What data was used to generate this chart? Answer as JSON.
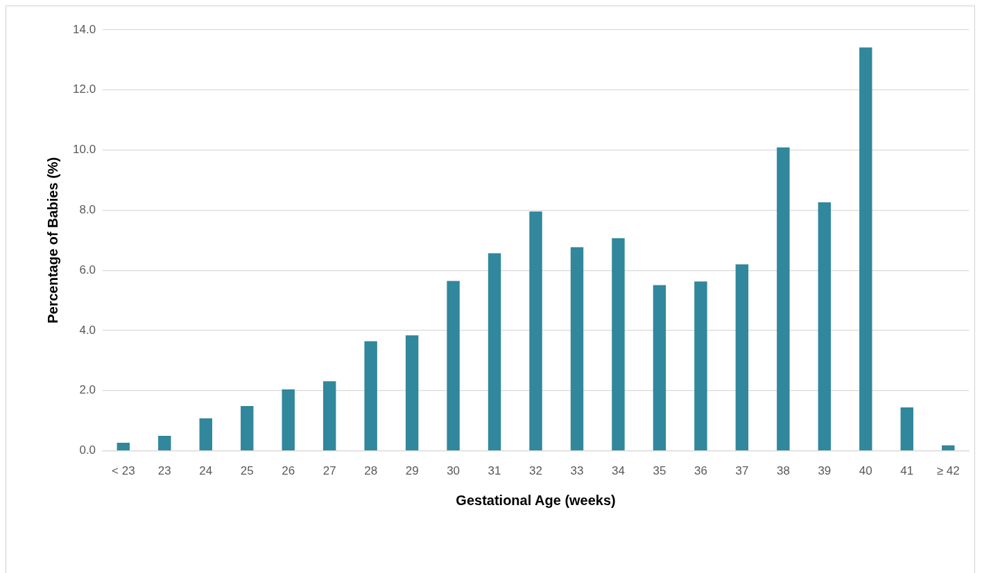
{
  "chart_data": {
    "type": "bar",
    "xlabel": "Gestational Age (weeks)",
    "ylabel": "Percentage of Babies (%)",
    "categories": [
      "< 23",
      "23",
      "24",
      "25",
      "26",
      "27",
      "28",
      "29",
      "30",
      "31",
      "32",
      "33",
      "34",
      "35",
      "36",
      "37",
      "38",
      "39",
      "40",
      "41",
      "≥ 42"
    ],
    "values": [
      0.27,
      0.5,
      1.08,
      1.49,
      2.04,
      2.31,
      3.64,
      3.84,
      5.65,
      6.57,
      7.96,
      6.77,
      7.07,
      5.51,
      5.63,
      6.2,
      10.09,
      8.26,
      13.41,
      1.44,
      0.18
    ],
    "color": "#31879c",
    "ylim": [
      0,
      14
    ],
    "yticks": [
      {
        "value": 0,
        "label": "0.0"
      },
      {
        "value": 2,
        "label": "2.0"
      },
      {
        "value": 4,
        "label": "4.0"
      },
      {
        "value": 6,
        "label": "6.0"
      },
      {
        "value": 8,
        "label": "8.0"
      },
      {
        "value": 10,
        "label": "10.0"
      },
      {
        "value": 12,
        "label": "12.0"
      },
      {
        "value": 14,
        "label": "14.0"
      }
    ],
    "grid": "y"
  }
}
